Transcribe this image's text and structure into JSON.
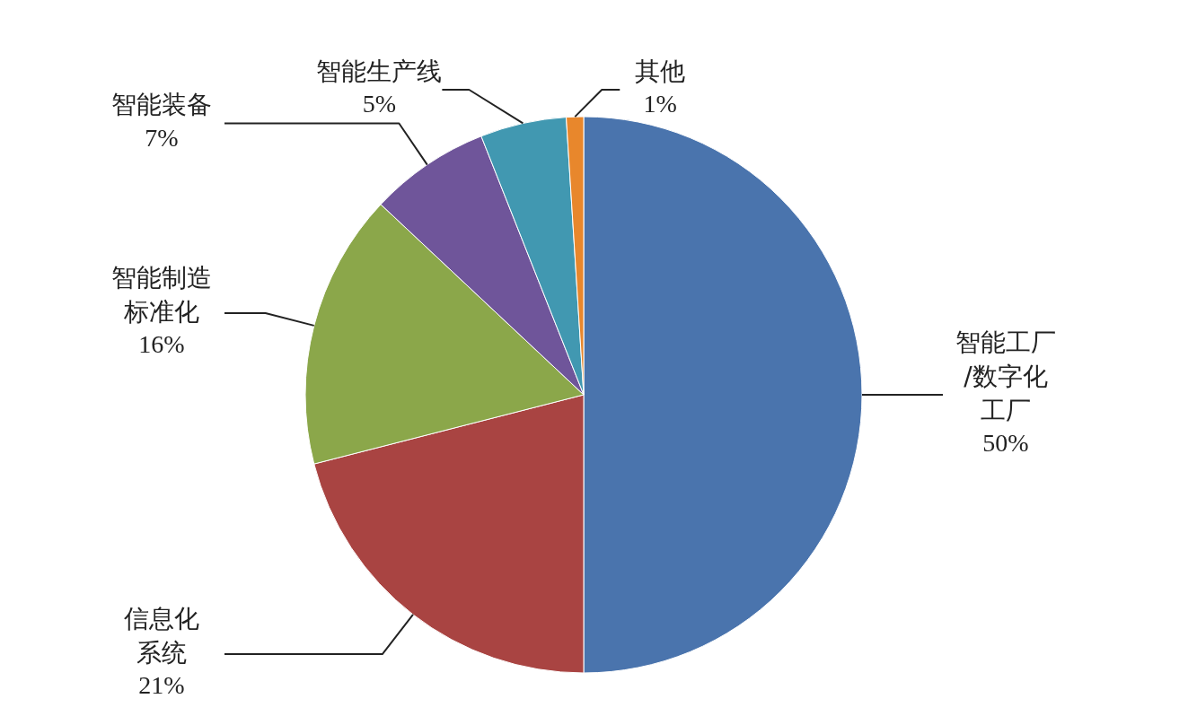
{
  "chart_data": {
    "type": "pie",
    "categories": [
      "智能工厂/数字化工厂",
      "信息化系统",
      "智能制造标准化",
      "智能装备",
      "智能生产线",
      "其他"
    ],
    "values": [
      50,
      21,
      16,
      7,
      5,
      1
    ],
    "value_labels": [
      "50%",
      "21%",
      "16%",
      "7%",
      "5%",
      "1%"
    ],
    "colors": [
      "#4a74ad",
      "#a94442",
      "#8ba74a",
      "#6f559a",
      "#4198b1",
      "#e8872c"
    ]
  }
}
